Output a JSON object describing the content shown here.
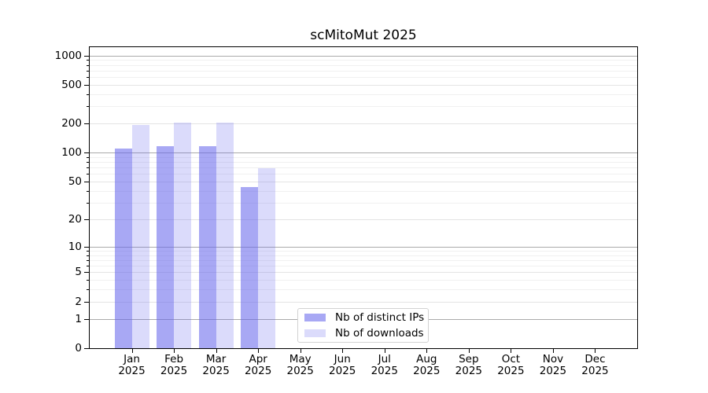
{
  "chart_data": {
    "type": "bar",
    "title": "scMitoMut 2025",
    "categories": [
      "Jan 2025",
      "Feb 2025",
      "Mar 2025",
      "Apr 2025",
      "May 2025",
      "Jun 2025",
      "Jul 2025",
      "Aug 2025",
      "Sep 2025",
      "Oct 2025",
      "Nov 2025",
      "Dec 2025"
    ],
    "series": [
      {
        "name": "Nb of distinct IPs",
        "color": "rgba(100,100,236,0.56)",
        "values": [
          110,
          116,
          116,
          44,
          0,
          0,
          0,
          0,
          0,
          0,
          0,
          0
        ]
      },
      {
        "name": "Nb of downloads",
        "color": "rgba(100,100,236,0.23)",
        "values": [
          195,
          205,
          205,
          69,
          0,
          0,
          0,
          0,
          0,
          0,
          0,
          0
        ]
      }
    ],
    "xlabel": "",
    "ylabel": "",
    "yscale": "log1p",
    "ylim": [
      0,
      1240
    ],
    "y_major_ticks": [
      0,
      1,
      2,
      5,
      10,
      20,
      50,
      100,
      200,
      500,
      1000
    ],
    "y_decade_ticks": [
      1,
      10,
      100,
      1000
    ],
    "y_minor_ticks": [
      3,
      4,
      6,
      7,
      8,
      9,
      30,
      40,
      60,
      70,
      80,
      90,
      300,
      400,
      600,
      700,
      800,
      900
    ],
    "grid": true,
    "legend_position": "lower center"
  },
  "colors": {
    "spine": "#000000",
    "grid_decade": "#aaaaaa",
    "grid_sub": "#e4e4e4",
    "grid_minor": "#f0f0f0",
    "text": "#000000",
    "legend_border": "#d2d2d2",
    "background": "#ffffff"
  }
}
